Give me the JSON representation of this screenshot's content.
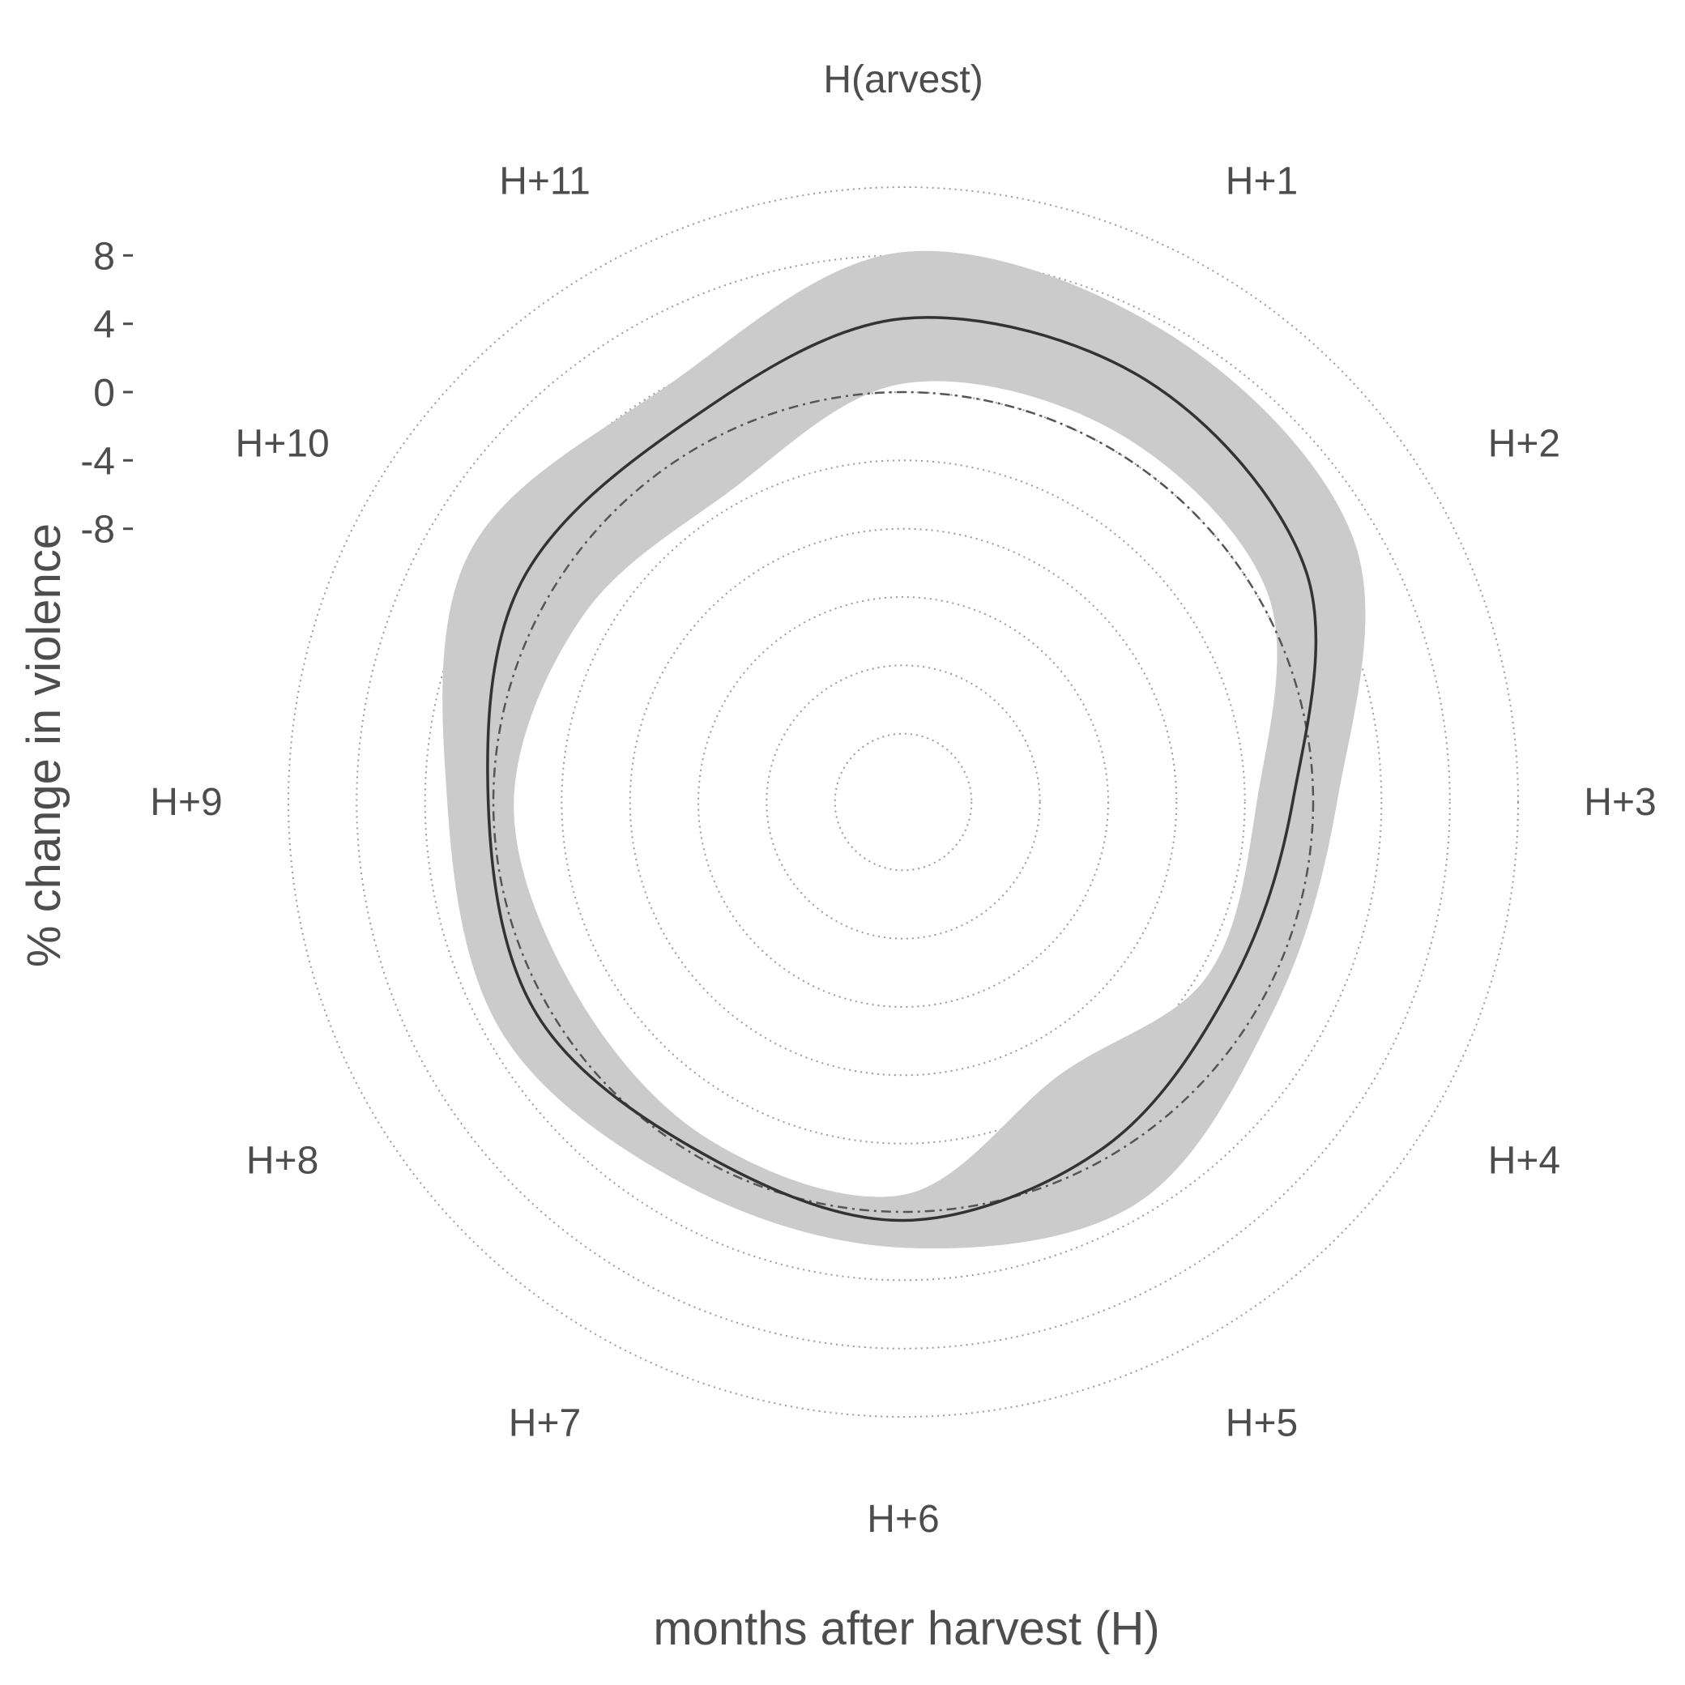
{
  "chart_data": {
    "type": "radar",
    "title": "",
    "xlabel": "months after harvest (H)",
    "ylabel": "% change in violence",
    "categories": [
      "H(arvest)",
      "H+1",
      "H+2",
      "H+3",
      "H+4",
      "H+5",
      "H+6",
      "H+7",
      "H+8",
      "H+9",
      "H+10",
      "H+11"
    ],
    "r_ticks": [
      "8",
      "4",
      "0",
      "-4",
      "-8"
    ],
    "r_tick_values": [
      8,
      4,
      0,
      -4,
      -8
    ],
    "r_min": -24,
    "r_max": 12,
    "grid_values": [
      -20,
      -16,
      -12,
      -8,
      -4,
      0,
      4,
      8,
      12
    ],
    "reference_value": 0,
    "series": [
      {
        "estimate": [
          4.3,
          4.5,
          3.2,
          -1.2,
          -2.0,
          -0.6,
          0.5,
          -0.3,
          0.8,
          0.3,
          1.8,
          1.6
        ],
        "ci_lower": [
          0.5,
          1.0,
          0.6,
          -3.3,
          -3.5,
          -5.6,
          -1.0,
          -1.2,
          -1.8,
          -1.2,
          -2.3,
          -3.2
        ],
        "ci_upper": [
          8.2,
          7.5,
          6.5,
          1.4,
          0.9,
          3.2,
          2.1,
          1.8,
          3.1,
          2.7,
          5.3,
          4.0
        ]
      }
    ],
    "colors": {
      "estimate_line": "#333333",
      "ci_band": "#cbcbcb",
      "grid": "#9a9a9a",
      "reference": "#555555",
      "text": "#4d4d4d"
    },
    "grid": true,
    "legend": "none"
  }
}
